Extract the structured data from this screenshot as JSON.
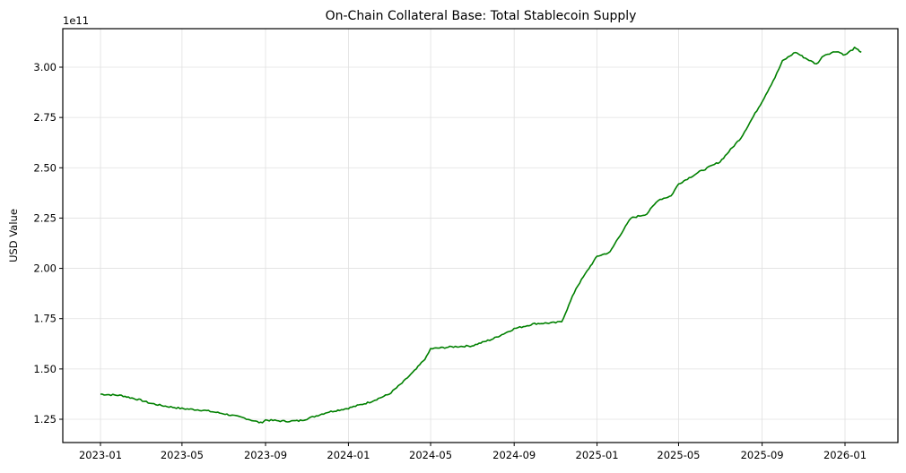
{
  "chart_data": {
    "type": "line",
    "title": "On-Chain Collateral Base: Total Stablecoin Supply",
    "xlabel": "",
    "ylabel": "USD Value",
    "y_offset_text": "1e11",
    "ylim": [
      1.14,
      3.19
    ],
    "y_ticks": [
      "1.25",
      "1.50",
      "1.75",
      "2.00",
      "2.25",
      "2.50",
      "2.75",
      "3.00"
    ],
    "x_ticks": [
      "2023-01",
      "2023-05",
      "2023-09",
      "2024-01",
      "2024-05",
      "2024-09",
      "2025-01",
      "2025-05",
      "2025-09",
      "2026-01"
    ],
    "grid": true,
    "legend": null,
    "series": [
      {
        "name": "Total Stablecoin Supply",
        "color": "#008000",
        "x": [
          "2023-01-01",
          "2023-02-01",
          "2023-03-01",
          "2023-03-15",
          "2023-04-01",
          "2023-05-01",
          "2023-06-01",
          "2023-07-01",
          "2023-08-01",
          "2023-08-25",
          "2023-09-01",
          "2023-10-01",
          "2023-10-20",
          "2023-11-01",
          "2023-12-01",
          "2024-01-01",
          "2024-02-01",
          "2024-03-01",
          "2024-03-20",
          "2024-04-10",
          "2024-04-25",
          "2024-05-01",
          "2024-06-01",
          "2024-07-01",
          "2024-08-01",
          "2024-09-01",
          "2024-10-01",
          "2024-11-01",
          "2024-11-10",
          "2024-12-01",
          "2024-12-20",
          "2025-01-01",
          "2025-01-20",
          "2025-02-01",
          "2025-02-20",
          "2025-03-15",
          "2025-04-01",
          "2025-04-20",
          "2025-05-01",
          "2025-06-01",
          "2025-07-01",
          "2025-08-01",
          "2025-09-01",
          "2025-09-20",
          "2025-10-01",
          "2025-10-20",
          "2025-11-01",
          "2025-11-20",
          "2025-12-01",
          "2025-12-20",
          "2026-01-01",
          "2026-01-15",
          "2026-01-25"
        ],
        "values": [
          137.5,
          136.8,
          134.5,
          133.0,
          131.8,
          130.3,
          129.5,
          127.8,
          125.6,
          123.2,
          124.6,
          124.0,
          124.2,
          125.2,
          128.5,
          130.5,
          133.5,
          137.5,
          143.0,
          150.0,
          156.0,
          160.0,
          161.0,
          161.5,
          165.0,
          170.0,
          172.5,
          173.0,
          173.5,
          190.0,
          200.0,
          206.0,
          208.0,
          215.0,
          225.0,
          227.0,
          234.0,
          236.0,
          242.0,
          248.0,
          253.0,
          265.0,
          283.0,
          295.0,
          303.0,
          307.5,
          305.0,
          301.5,
          306.0,
          308.0,
          306.0,
          309.5,
          307.5
        ]
      }
    ],
    "value_units": "1e9 USD"
  }
}
